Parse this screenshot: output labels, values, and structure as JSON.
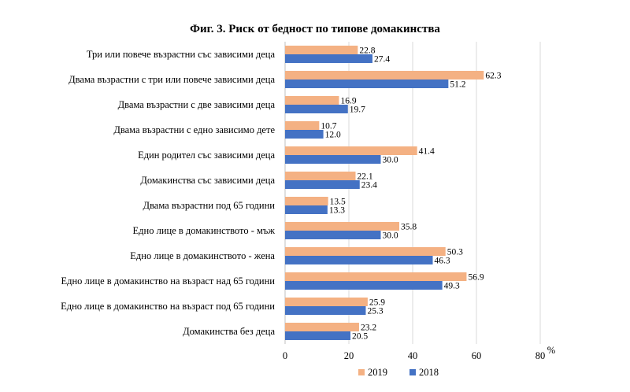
{
  "chart_data": {
    "type": "bar",
    "orientation": "horizontal",
    "title": "Фиг. 3. Риск от бедност по типове домакинства",
    "unit_label": "%",
    "categories": [
      "Три или повече възрастни със зависими деца",
      "Двама възрастни с три или повече зависими деца",
      "Двама възрастни с две зависими деца",
      "Двама възрастни с едно зависимо дете",
      "Един родител със зависими деца",
      "Домакинства със зависими деца",
      "Двама възрастни под 65 години",
      "Едно лице в домакинството - мъж",
      "Едно лице в домакинството - жена",
      "Едно лице в домакинство на възраст над 65 години",
      "Едно лице в домакинство на възраст под 65 години",
      "Домакинства без деца"
    ],
    "series": [
      {
        "name": "2019",
        "color": "#F4B183",
        "values": [
          22.8,
          62.3,
          16.9,
          10.7,
          41.4,
          22.1,
          13.5,
          35.8,
          50.3,
          56.9,
          25.9,
          23.2
        ],
        "labels": [
          "22.8",
          "62.3",
          "16.9",
          "10.7",
          "41.4",
          "22.1",
          "13.5",
          "35.8",
          "50.3",
          "56.9",
          "25.9",
          "23.2"
        ]
      },
      {
        "name": "2018",
        "color": "#4472C4",
        "values": [
          27.4,
          51.2,
          19.7,
          12.0,
          30.0,
          23.4,
          13.3,
          30.0,
          46.3,
          49.3,
          25.3,
          20.5
        ],
        "labels": [
          "27.4",
          "51.2",
          "19.7",
          "12.0",
          "30.0",
          "23.4",
          "13.3",
          "30.0",
          "46.3",
          "49.3",
          "25.3",
          "20.5"
        ]
      }
    ],
    "xlim": [
      0,
      80
    ],
    "ticks": [
      0,
      20,
      40,
      60,
      80
    ],
    "tick_labels": [
      "0",
      "20",
      "40",
      "60",
      "80"
    ],
    "grid": true,
    "legend_position": "bottom"
  }
}
